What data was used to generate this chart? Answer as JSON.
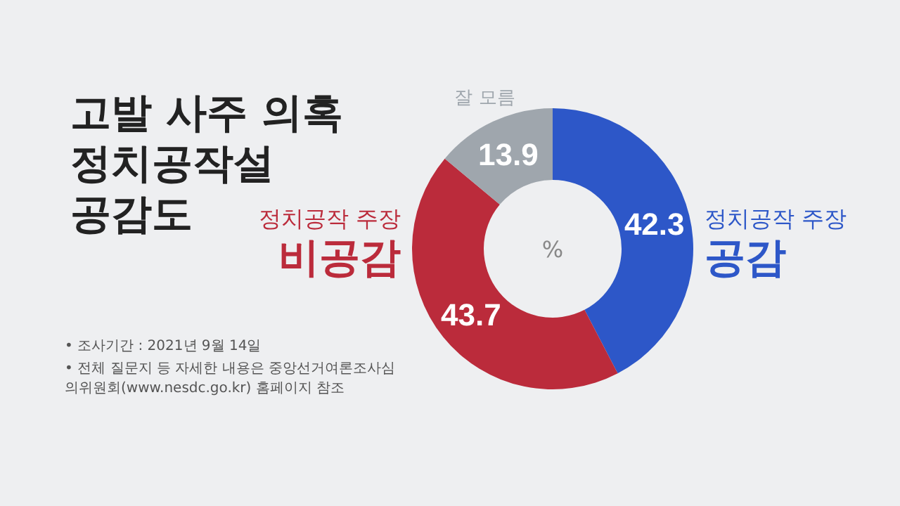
{
  "chart_data": {
    "type": "donut",
    "title": "고발 사주 의혹\n정치공작설\n공감도",
    "categories": [
      "정치공작 주장\n공감",
      "정치공작 주장\n비공감",
      "잘 모름"
    ],
    "values": [
      42.3,
      43.7,
      13.9
    ],
    "colors": [
      "#2d57c8",
      "#bb2b3b",
      "#9fa6ad"
    ],
    "data_labels": true,
    "annotations": [
      "%",
      "• 조사기간 : 2021년 9월 14일",
      "• 전체 질문지 등 자세한 내용은 중앙선거여론조사심의위원회(www.nesdc.go.kr) 홈페이지 참조"
    ]
  }
}
